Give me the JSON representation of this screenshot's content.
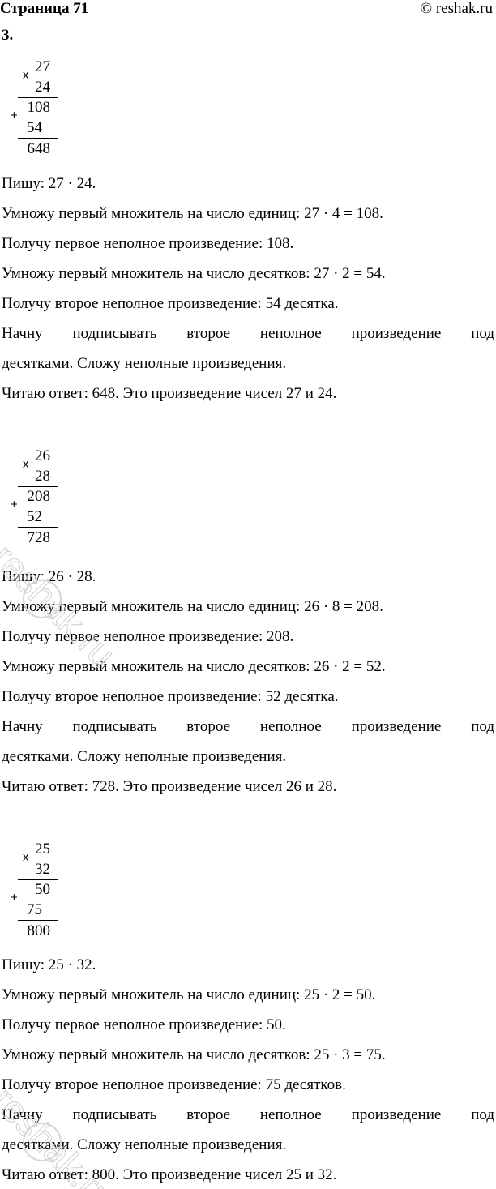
{
  "header": {
    "title": "Страница 71",
    "copyright": "© reshak.ru"
  },
  "task_number": "3.",
  "watermark": "reshak.ru",
  "examples": [
    {
      "a": "27",
      "b": "24",
      "p1": "108",
      "p2": "54",
      "result": "648",
      "lines": [
        "Пишу:  27 · 24.",
        "Умножу первый множитель на число единиц:  27 · 4 = 108.",
        "Получу первое неполное произведение: 108.",
        "Умножу первый множитель на число десятков:  27 · 2 = 54.",
        "Получу второе неполное произведение: 54 десятка.",
        "Начну подписывать второе неполное произведение под",
        "десятками. Сложу неполные произведения.",
        "Читаю ответ: 648. Это произведение чисел 27 и 24."
      ]
    },
    {
      "a": "26",
      "b": "28",
      "p1": "208",
      "p2": "52",
      "result": "728",
      "lines": [
        "Пишу:  26 · 28.",
        "Умножу первый множитель на число единиц:  26 · 8 = 208.",
        "Получу первое неполное произведение: 208.",
        "Умножу первый множитель на число десятков:  26 · 2 = 52.",
        "Получу второе неполное произведение: 52 десятка.",
        "Начну подписывать второе неполное произведение под",
        "десятками. Сложу неполные произведения.",
        "Читаю ответ: 728. Это произведение чисел 26 и 28."
      ]
    },
    {
      "a": "25",
      "b": "32",
      "p1": "50",
      "p2": "75",
      "result": "800",
      "lines": [
        "Пишу:  25 · 32.",
        "Умножу первый множитель на число единиц:  25 · 2 = 50.",
        "Получу первое неполное произведение: 50.",
        "Умножу первый множитель на число десятков:  25 · 3 = 75.",
        "Получу второе неполное произведение: 75 десятков.",
        "Начну подписывать второе неполное произведение под",
        "десятками. Сложу неполные произведения.",
        "Читаю ответ: 800. Это произведение чисел 25 и 32."
      ]
    }
  ],
  "signs": {
    "multiply": "x",
    "plus": "+"
  }
}
